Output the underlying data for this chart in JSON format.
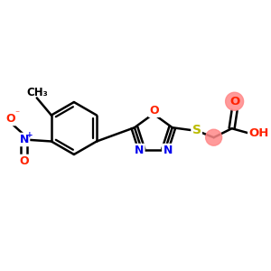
{
  "background_color": "#ffffff",
  "atom_colors": {
    "C": "#000000",
    "N": "#0000ee",
    "O": "#ff2200",
    "S": "#bbbb00",
    "H": "#000000"
  },
  "bond_color": "#000000",
  "bond_width": 1.8,
  "highlight_color": "#ff8888",
  "highlight_alpha": 0.85
}
